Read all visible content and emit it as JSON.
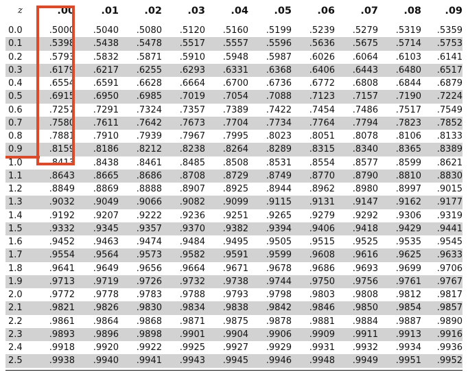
{
  "table": {
    "headers": [
      "z",
      ".00",
      ".01",
      ".02",
      ".03",
      ".04",
      ".05",
      ".06",
      ".07",
      ".08",
      ".09"
    ],
    "rows": [
      [
        "0.0",
        ".5000",
        ".5040",
        ".5080",
        ".5120",
        ".5160",
        ".5199",
        ".5239",
        ".5279",
        ".5319",
        ".5359"
      ],
      [
        "0.1",
        ".5398",
        ".5438",
        ".5478",
        ".5517",
        ".5557",
        ".5596",
        ".5636",
        ".5675",
        ".5714",
        ".5753"
      ],
      [
        "0.2",
        ".5793",
        ".5832",
        ".5871",
        ".5910",
        ".5948",
        ".5987",
        ".6026",
        ".6064",
        ".6103",
        ".6141"
      ],
      [
        "0.3",
        ".6179",
        ".6217",
        ".6255",
        ".6293",
        ".6331",
        ".6368",
        ".6406",
        ".6443",
        ".6480",
        ".6517"
      ],
      [
        "0.4",
        ".6554",
        ".6591",
        ".6628",
        ".6664",
        ".6700",
        ".6736",
        ".6772",
        ".6808",
        ".6844",
        ".6879"
      ],
      [
        "0.5",
        ".6915",
        ".6950",
        ".6985",
        ".7019",
        ".7054",
        ".7088",
        ".7123",
        ".7157",
        ".7190",
        ".7224"
      ],
      [
        "0.6",
        ".7257",
        ".7291",
        ".7324",
        ".7357",
        ".7389",
        ".7422",
        ".7454",
        ".7486",
        ".7517",
        ".7549"
      ],
      [
        "0.7",
        ".7580",
        ".7611",
        ".7642",
        ".7673",
        ".7704",
        ".7734",
        ".7764",
        ".7794",
        ".7823",
        ".7852"
      ],
      [
        "0.8",
        ".7881",
        ".7910",
        ".7939",
        ".7967",
        ".7995",
        ".8023",
        ".8051",
        ".8078",
        ".8106",
        ".8133"
      ],
      [
        "0.9",
        ".8159",
        ".8186",
        ".8212",
        ".8238",
        ".8264",
        ".8289",
        ".8315",
        ".8340",
        ".8365",
        ".8389"
      ],
      [
        "1.0",
        ".8413",
        ".8438",
        ".8461",
        ".8485",
        ".8508",
        ".8531",
        ".8554",
        ".8577",
        ".8599",
        ".8621"
      ],
      [
        "1.1",
        ".8643",
        ".8665",
        ".8686",
        ".8708",
        ".8729",
        ".8749",
        ".8770",
        ".8790",
        ".8810",
        ".8830"
      ],
      [
        "1.2",
        ".8849",
        ".8869",
        ".8888",
        ".8907",
        ".8925",
        ".8944",
        ".8962",
        ".8980",
        ".8997",
        ".9015"
      ],
      [
        "1.3",
        ".9032",
        ".9049",
        ".9066",
        ".9082",
        ".9099",
        ".9115",
        ".9131",
        ".9147",
        ".9162",
        ".9177"
      ],
      [
        "1.4",
        ".9192",
        ".9207",
        ".9222",
        ".9236",
        ".9251",
        ".9265",
        ".9279",
        ".9292",
        ".9306",
        ".9319"
      ],
      [
        "1.5",
        ".9332",
        ".9345",
        ".9357",
        ".9370",
        ".9382",
        ".9394",
        ".9406",
        ".9418",
        ".9429",
        ".9441"
      ],
      [
        "1.6",
        ".9452",
        ".9463",
        ".9474",
        ".9484",
        ".9495",
        ".9505",
        ".9515",
        ".9525",
        ".9535",
        ".9545"
      ],
      [
        "1.7",
        ".9554",
        ".9564",
        ".9573",
        ".9582",
        ".9591",
        ".9599",
        ".9608",
        ".9616",
        ".9625",
        ".9633"
      ],
      [
        "1.8",
        ".9641",
        ".9649",
        ".9656",
        ".9664",
        ".9671",
        ".9678",
        ".9686",
        ".9693",
        ".9699",
        ".9706"
      ],
      [
        "1.9",
        ".9713",
        ".9719",
        ".9726",
        ".9732",
        ".9738",
        ".9744",
        ".9750",
        ".9756",
        ".9761",
        ".9767"
      ],
      [
        "2.0",
        ".9772",
        ".9778",
        ".9783",
        ".9788",
        ".9793",
        ".9798",
        ".9803",
        ".9808",
        ".9812",
        ".9817"
      ],
      [
        "2.1",
        ".9821",
        ".9826",
        ".9830",
        ".9834",
        ".9838",
        ".9842",
        ".9846",
        ".9850",
        ".9854",
        ".9857"
      ],
      [
        "2.2",
        ".9861",
        ".9864",
        ".9868",
        ".9871",
        ".9875",
        ".9878",
        ".9881",
        ".9884",
        ".9887",
        ".9890"
      ],
      [
        "2.3",
        ".9893",
        ".9896",
        ".9898",
        ".9901",
        ".9904",
        ".9906",
        ".9909",
        ".9911",
        ".9913",
        ".9916"
      ],
      [
        "2.4",
        ".9918",
        ".9920",
        ".9922",
        ".9925",
        ".9927",
        ".9929",
        ".9931",
        ".9932",
        ".9934",
        ".9936"
      ],
      [
        "2.5",
        ".9938",
        ".9940",
        ".9941",
        ".9943",
        ".9945",
        ".9946",
        ".9948",
        ".9949",
        ".9951",
        ".9952"
      ]
    ]
  },
  "highlight": {
    "column": ".00",
    "color": "#d94b2b"
  },
  "colors": {
    "alt_row": "#d2d2d2",
    "text": "#111111"
  }
}
